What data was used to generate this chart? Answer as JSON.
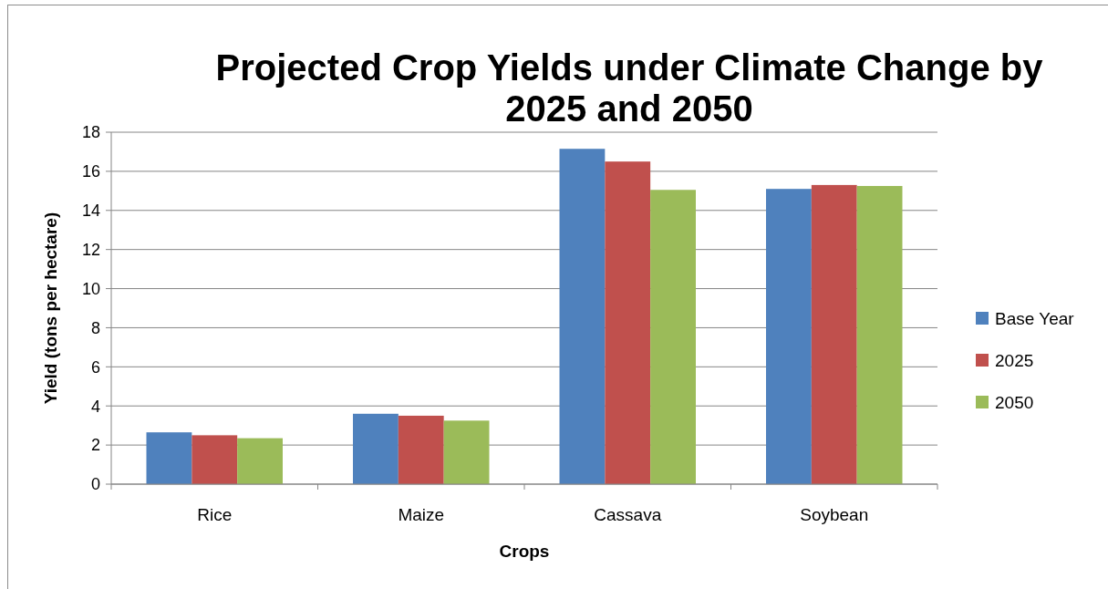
{
  "chart_data": {
    "type": "bar",
    "title": "Projected Crop Yields under Climate Change by 2025 and 2050",
    "xlabel": "Crops",
    "ylabel": "Yield (tons per hectare)",
    "categories": [
      "Rice",
      "Maize",
      "Cassava",
      "Soybean"
    ],
    "series": [
      {
        "name": "Base Year",
        "color": "#4f81bd",
        "values": [
          2.65,
          3.6,
          17.15,
          15.1
        ]
      },
      {
        "name": "2025",
        "color": "#c0504d",
        "values": [
          2.5,
          3.5,
          16.5,
          15.3
        ]
      },
      {
        "name": "2050",
        "color": "#9bbb59",
        "values": [
          2.35,
          3.25,
          15.05,
          15.25
        ]
      }
    ],
    "ylim": [
      0,
      18
    ],
    "yticks": [
      0,
      2,
      4,
      6,
      8,
      10,
      12,
      14,
      16,
      18
    ],
    "grid": "y",
    "legend": "right"
  }
}
